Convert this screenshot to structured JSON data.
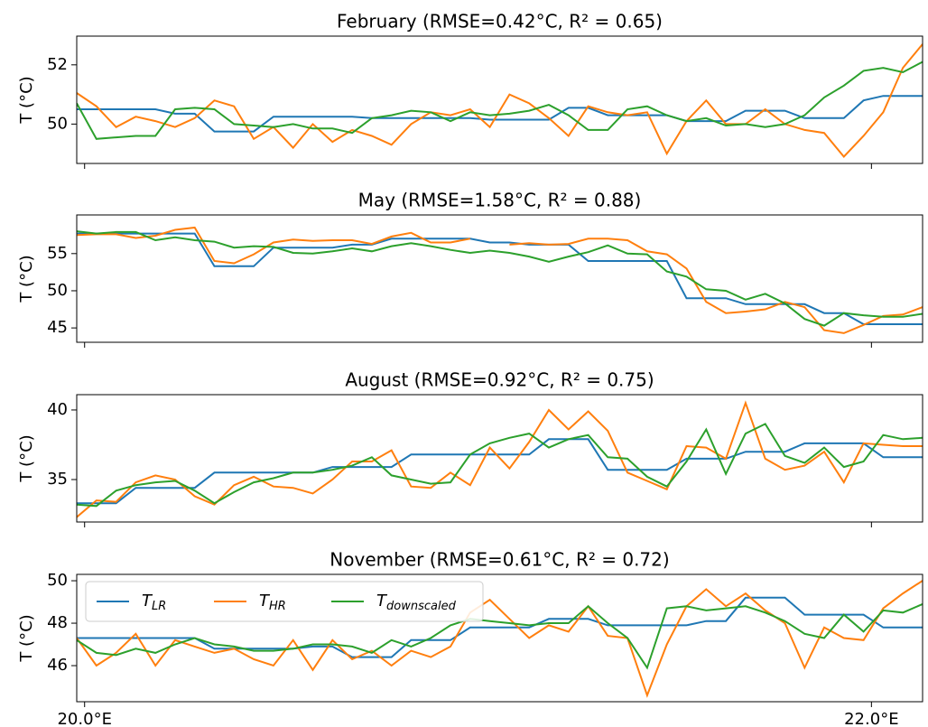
{
  "chart_data": [
    {
      "type": "line",
      "title": "February (RMSE=0.42°C, R² = 0.65)",
      "ylabel": "T (°C)",
      "x": [
        19.98,
        20.03,
        20.08,
        20.13,
        20.18,
        20.23,
        20.28,
        20.33,
        20.38,
        20.43,
        20.48,
        20.53,
        20.58,
        20.63,
        20.68,
        20.73,
        20.78,
        20.83,
        20.88,
        20.93,
        20.98,
        21.03,
        21.08,
        21.13,
        21.18,
        21.23,
        21.28,
        21.33,
        21.38,
        21.43,
        21.48,
        21.53,
        21.58,
        21.63,
        21.68,
        21.73,
        21.78,
        21.83,
        21.88,
        21.93,
        21.98,
        22.03,
        22.08,
        22.13
      ],
      "xlim": [
        19.98,
        22.13
      ],
      "xticks": [
        20,
        22
      ],
      "ylim": [
        48.67,
        52.97
      ],
      "yticks": [
        50,
        52
      ],
      "series": [
        {
          "name": "TLR",
          "color": "#1f77b4",
          "values": [
            50.5,
            50.5,
            50.5,
            50.5,
            50.5,
            50.35,
            50.35,
            49.75,
            49.75,
            49.75,
            50.25,
            50.25,
            50.25,
            50.25,
            50.25,
            50.2,
            50.2,
            50.2,
            50.2,
            50.2,
            50.2,
            50.15,
            50.15,
            50.15,
            50.15,
            50.55,
            50.55,
            50.3,
            50.3,
            50.3,
            50.3,
            50.1,
            50.1,
            50.1,
            50.45,
            50.45,
            50.45,
            50.2,
            50.2,
            50.2,
            50.8,
            50.95,
            50.95,
            50.95
          ]
        },
        {
          "name": "THR",
          "color": "#ff7f0e",
          "values": [
            51.05,
            50.6,
            49.9,
            50.25,
            50.1,
            49.9,
            50.2,
            50.8,
            50.6,
            49.5,
            49.9,
            49.2,
            50.0,
            49.4,
            49.8,
            49.6,
            49.3,
            50.0,
            50.4,
            50.3,
            50.5,
            49.9,
            51.0,
            50.7,
            50.2,
            49.6,
            50.6,
            50.4,
            50.3,
            50.4,
            49.0,
            50.1,
            50.8,
            50.0,
            50.0,
            50.5,
            50.0,
            49.8,
            49.7,
            48.9,
            49.6,
            50.4,
            51.9,
            52.7
          ]
        },
        {
          "name": "Tdownscaled",
          "color": "#2ca02c",
          "values": [
            50.7,
            49.5,
            49.55,
            49.6,
            49.6,
            50.5,
            50.55,
            50.5,
            50.0,
            49.95,
            49.9,
            50.0,
            49.85,
            49.85,
            49.7,
            50.2,
            50.3,
            50.45,
            50.4,
            50.1,
            50.4,
            50.3,
            50.35,
            50.45,
            50.65,
            50.3,
            49.8,
            49.8,
            50.5,
            50.6,
            50.3,
            50.1,
            50.2,
            49.95,
            50.0,
            49.9,
            50.0,
            50.3,
            50.9,
            51.3,
            51.8,
            51.9,
            51.75,
            52.1
          ]
        }
      ]
    },
    {
      "type": "line",
      "title": "May (RMSE=1.58°C, R² = 0.88)",
      "ylabel": "T (°C)",
      "x": [
        19.98,
        20.03,
        20.08,
        20.13,
        20.18,
        20.23,
        20.28,
        20.33,
        20.38,
        20.43,
        20.48,
        20.53,
        20.58,
        20.63,
        20.68,
        20.73,
        20.78,
        20.83,
        20.88,
        20.93,
        20.98,
        21.03,
        21.08,
        21.13,
        21.18,
        21.23,
        21.28,
        21.33,
        21.38,
        21.43,
        21.48,
        21.53,
        21.58,
        21.63,
        21.68,
        21.73,
        21.78,
        21.83,
        21.88,
        21.93,
        21.98,
        22.03,
        22.08,
        22.13
      ],
      "xlim": [
        19.98,
        22.13
      ],
      "xticks": [
        20,
        22
      ],
      "ylim": [
        43.07,
        60.2
      ],
      "yticks": [
        45,
        50,
        55
      ],
      "series": [
        {
          "name": "TLR",
          "color": "#1f77b4",
          "values": [
            57.7,
            57.7,
            57.7,
            57.7,
            57.7,
            57.7,
            57.7,
            53.3,
            53.3,
            53.3,
            55.8,
            55.8,
            55.8,
            55.8,
            56.2,
            56.2,
            57.0,
            57.0,
            57.0,
            57.0,
            57.0,
            56.5,
            56.5,
            56.2,
            56.2,
            56.2,
            54.0,
            54.0,
            54.0,
            54.0,
            54.0,
            49.0,
            49.0,
            49.0,
            48.2,
            48.2,
            48.2,
            48.2,
            47.0,
            47.0,
            45.5,
            45.5,
            45.5,
            45.5
          ]
        },
        {
          "name": "THR",
          "color": "#ff7f0e",
          "values": [
            57.5,
            57.6,
            57.6,
            57.1,
            57.4,
            58.2,
            58.5,
            54.0,
            53.7,
            54.9,
            56.5,
            56.9,
            56.7,
            56.8,
            56.8,
            56.3,
            57.3,
            57.8,
            56.5,
            56.5,
            57.0,
            null,
            56.2,
            56.4,
            56.2,
            56.3,
            57.0,
            57.0,
            56.8,
            55.3,
            54.9,
            53.0,
            48.5,
            47.0,
            47.2,
            47.5,
            48.5,
            47.8,
            44.7,
            44.3,
            45.4,
            46.6,
            46.8,
            47.8
          ]
        },
        {
          "name": "Tdownscaled",
          "color": "#2ca02c",
          "values": [
            58.0,
            57.7,
            57.9,
            57.9,
            56.8,
            57.2,
            56.8,
            56.6,
            55.8,
            56.0,
            55.9,
            55.1,
            55.0,
            55.3,
            55.7,
            55.3,
            56.0,
            56.4,
            56.0,
            55.5,
            55.1,
            55.4,
            55.1,
            54.6,
            53.9,
            54.6,
            55.2,
            56.1,
            55.0,
            54.9,
            52.6,
            51.9,
            50.2,
            50.0,
            48.8,
            49.6,
            48.3,
            46.2,
            45.3,
            47.0,
            46.7,
            46.5,
            46.5,
            46.9
          ]
        }
      ]
    },
    {
      "type": "line",
      "title": "August (RMSE=0.92°C, R² = 0.75)",
      "ylabel": "T (°C)",
      "x": [
        19.98,
        20.03,
        20.08,
        20.13,
        20.18,
        20.23,
        20.28,
        20.33,
        20.38,
        20.43,
        20.48,
        20.53,
        20.58,
        20.63,
        20.68,
        20.73,
        20.78,
        20.83,
        20.88,
        20.93,
        20.98,
        21.03,
        21.08,
        21.13,
        21.18,
        21.23,
        21.28,
        21.33,
        21.38,
        21.43,
        21.48,
        21.53,
        21.58,
        21.63,
        21.68,
        21.73,
        21.78,
        21.83,
        21.88,
        21.93,
        21.98,
        22.03,
        22.08,
        22.13
      ],
      "xlim": [
        19.98,
        22.13
      ],
      "xticks": [
        20,
        22
      ],
      "ylim": [
        31.95,
        41.1
      ],
      "yticks": [
        35,
        40
      ],
      "series": [
        {
          "name": "TLR",
          "color": "#1f77b4",
          "values": [
            33.3,
            33.3,
            33.3,
            34.4,
            34.4,
            34.4,
            34.4,
            35.5,
            35.5,
            35.5,
            35.5,
            35.5,
            35.5,
            35.9,
            35.9,
            35.9,
            35.9,
            36.8,
            36.8,
            36.8,
            36.8,
            36.8,
            36.8,
            36.8,
            37.9,
            37.9,
            37.9,
            35.7,
            35.7,
            35.7,
            35.7,
            36.5,
            36.5,
            36.5,
            37.0,
            37.0,
            37.0,
            37.6,
            37.6,
            37.6,
            37.6,
            36.6,
            36.6,
            36.6
          ]
        },
        {
          "name": "THR",
          "color": "#ff7f0e",
          "values": [
            32.3,
            33.5,
            33.4,
            34.8,
            35.3,
            35.0,
            33.8,
            33.2,
            34.6,
            35.2,
            34.5,
            34.4,
            34.0,
            35.0,
            36.3,
            36.3,
            37.1,
            34.5,
            34.4,
            35.5,
            34.6,
            37.3,
            35.8,
            37.7,
            40.0,
            38.6,
            39.9,
            38.5,
            35.5,
            34.9,
            34.3,
            37.4,
            37.3,
            36.5,
            40.5,
            36.5,
            35.7,
            36.0,
            37.0,
            34.8,
            37.6,
            37.5,
            37.4,
            37.4
          ]
        },
        {
          "name": "Tdownscaled",
          "color": "#2ca02c",
          "values": [
            33.2,
            33.1,
            34.2,
            34.6,
            34.8,
            34.9,
            34.2,
            33.3,
            34.1,
            34.8,
            35.1,
            35.5,
            35.5,
            35.7,
            36.0,
            36.6,
            35.3,
            35.0,
            34.7,
            34.8,
            36.8,
            37.6,
            38.0,
            38.3,
            37.3,
            37.9,
            38.2,
            36.6,
            36.5,
            35.2,
            34.5,
            36.3,
            38.6,
            35.4,
            38.3,
            39.0,
            36.7,
            36.2,
            37.3,
            35.9,
            36.3,
            38.2,
            37.9,
            38.0
          ]
        }
      ]
    },
    {
      "type": "line",
      "title": "November (RMSE=0.61°C, R² = 0.72)",
      "ylabel": "T (°C)",
      "legend": "upper left",
      "x": [
        19.98,
        20.03,
        20.08,
        20.13,
        20.18,
        20.23,
        20.28,
        20.33,
        20.38,
        20.43,
        20.48,
        20.53,
        20.58,
        20.63,
        20.68,
        20.73,
        20.78,
        20.83,
        20.88,
        20.93,
        20.98,
        21.03,
        21.08,
        21.13,
        21.18,
        21.23,
        21.28,
        21.33,
        21.38,
        21.43,
        21.48,
        21.53,
        21.58,
        21.63,
        21.68,
        21.73,
        21.78,
        21.83,
        21.88,
        21.93,
        21.98,
        22.03,
        22.08,
        22.13
      ],
      "xlim": [
        19.98,
        22.13
      ],
      "xticks": [
        {
          "value": 20,
          "label": "20.0°E"
        },
        {
          "value": 22,
          "label": "22.0°E"
        }
      ],
      "ylim": [
        44.3,
        50.3
      ],
      "yticks": [
        46,
        48,
        50
      ],
      "series": [
        {
          "name": "TLR",
          "color": "#1f77b4",
          "values": [
            47.3,
            47.3,
            47.3,
            47.3,
            47.3,
            47.3,
            47.3,
            46.8,
            46.8,
            46.8,
            46.8,
            46.8,
            46.9,
            46.9,
            46.4,
            46.4,
            46.4,
            47.2,
            47.2,
            47.2,
            47.8,
            47.8,
            47.8,
            47.8,
            48.2,
            48.2,
            48.2,
            47.9,
            47.9,
            47.9,
            47.9,
            47.9,
            48.1,
            48.1,
            49.2,
            49.2,
            49.2,
            48.4,
            48.4,
            48.4,
            48.4,
            47.8,
            47.8,
            47.8
          ]
        },
        {
          "name": "THR",
          "color": "#ff7f0e",
          "values": [
            47.3,
            46.0,
            46.6,
            47.5,
            46.0,
            47.2,
            46.9,
            46.6,
            46.8,
            46.3,
            46.0,
            47.2,
            45.8,
            47.2,
            46.3,
            46.7,
            46.0,
            46.7,
            46.4,
            46.9,
            48.5,
            49.1,
            48.2,
            47.3,
            47.9,
            47.6,
            48.8,
            47.4,
            47.3,
            44.6,
            47.0,
            48.8,
            49.6,
            48.8,
            49.4,
            48.6,
            48.0,
            45.9,
            47.8,
            47.3,
            47.2,
            48.7,
            49.4,
            50.0
          ]
        },
        {
          "name": "Tdownscaled",
          "color": "#2ca02c",
          "values": [
            47.2,
            46.6,
            46.5,
            46.8,
            46.6,
            47.0,
            47.3,
            47.0,
            46.9,
            46.7,
            46.7,
            46.8,
            47.0,
            47.0,
            46.9,
            46.6,
            47.2,
            46.9,
            47.3,
            47.9,
            48.2,
            48.1,
            48.0,
            47.9,
            48.0,
            48.0,
            48.8,
            48.0,
            47.3,
            45.9,
            48.7,
            48.8,
            48.6,
            48.7,
            48.8,
            48.5,
            48.1,
            47.5,
            47.3,
            48.4,
            47.6,
            48.6,
            48.5,
            48.9
          ]
        }
      ]
    }
  ]
}
